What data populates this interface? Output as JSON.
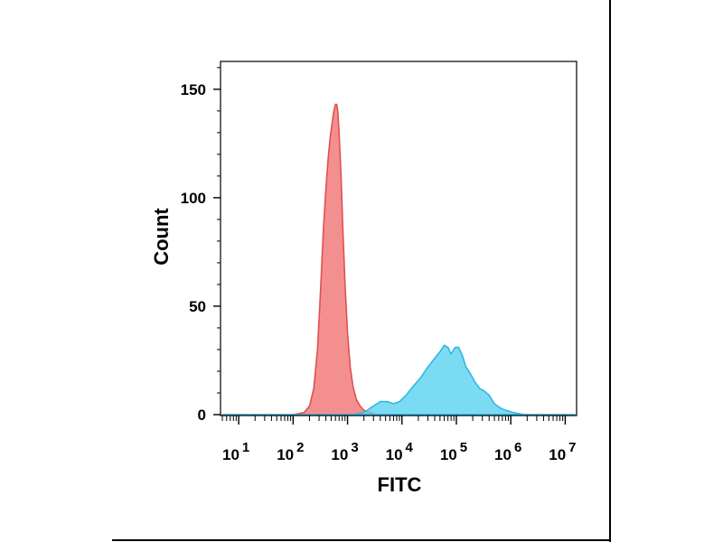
{
  "chart_data": {
    "type": "area",
    "xlabel": "FITC",
    "ylabel": "Count",
    "x_scale": "log",
    "xlim": [
      5,
      15000000
    ],
    "ylim": [
      0,
      162
    ],
    "x_ticks": [
      {
        "value": 10,
        "base": "10",
        "exp": "1"
      },
      {
        "value": 100,
        "base": "10",
        "exp": "2"
      },
      {
        "value": 1000,
        "base": "10",
        "exp": "3"
      },
      {
        "value": 10000,
        "base": "10",
        "exp": "4"
      },
      {
        "value": 100000,
        "base": "10",
        "exp": "5"
      },
      {
        "value": 1000000,
        "base": "10",
        "exp": "6"
      },
      {
        "value": 10000000,
        "base": "10",
        "exp": "7"
      }
    ],
    "y_ticks": [
      {
        "value": 0,
        "label": "0"
      },
      {
        "value": 50,
        "label": "50"
      },
      {
        "value": 100,
        "label": "100"
      },
      {
        "value": 150,
        "label": "150"
      }
    ],
    "grid": false,
    "legend": "none",
    "series": [
      {
        "color": "#f27b7b",
        "stroke": "#e05050",
        "points": [
          [
            5,
            0
          ],
          [
            100,
            0
          ],
          [
            160,
            1
          ],
          [
            200,
            4
          ],
          [
            240,
            12
          ],
          [
            280,
            30
          ],
          [
            320,
            58
          ],
          [
            360,
            85
          ],
          [
            400,
            104
          ],
          [
            440,
            118
          ],
          [
            480,
            128
          ],
          [
            520,
            134
          ],
          [
            560,
            140
          ],
          [
            600,
            143
          ],
          [
            630,
            143
          ],
          [
            660,
            140
          ],
          [
            700,
            130
          ],
          [
            760,
            110
          ],
          [
            820,
            85
          ],
          [
            900,
            60
          ],
          [
            1000,
            38
          ],
          [
            1120,
            22
          ],
          [
            1260,
            13
          ],
          [
            1450,
            7
          ],
          [
            1700,
            4
          ],
          [
            2000,
            2
          ],
          [
            2600,
            1
          ],
          [
            3500,
            0
          ],
          [
            15000000,
            0
          ]
        ]
      },
      {
        "color": "#5ad2f0",
        "stroke": "#30b8e2",
        "points": [
          [
            5,
            0
          ],
          [
            1200,
            0
          ],
          [
            2000,
            1
          ],
          [
            3000,
            4
          ],
          [
            4000,
            6
          ],
          [
            5500,
            6
          ],
          [
            7000,
            5
          ],
          [
            9000,
            6
          ],
          [
            12000,
            9
          ],
          [
            16000,
            13
          ],
          [
            22000,
            17
          ],
          [
            30000,
            22
          ],
          [
            40000,
            26
          ],
          [
            50000,
            29
          ],
          [
            60000,
            32
          ],
          [
            70000,
            31
          ],
          [
            80000,
            28
          ],
          [
            95000,
            31
          ],
          [
            110000,
            31
          ],
          [
            130000,
            27
          ],
          [
            150000,
            22
          ],
          [
            180000,
            19
          ],
          [
            220000,
            15
          ],
          [
            270000,
            12
          ],
          [
            320000,
            11
          ],
          [
            400000,
            9
          ],
          [
            500000,
            5
          ],
          [
            650000,
            3
          ],
          [
            800000,
            2
          ],
          [
            1100000,
            1
          ],
          [
            1800000,
            0
          ],
          [
            15000000,
            0
          ]
        ]
      }
    ]
  }
}
